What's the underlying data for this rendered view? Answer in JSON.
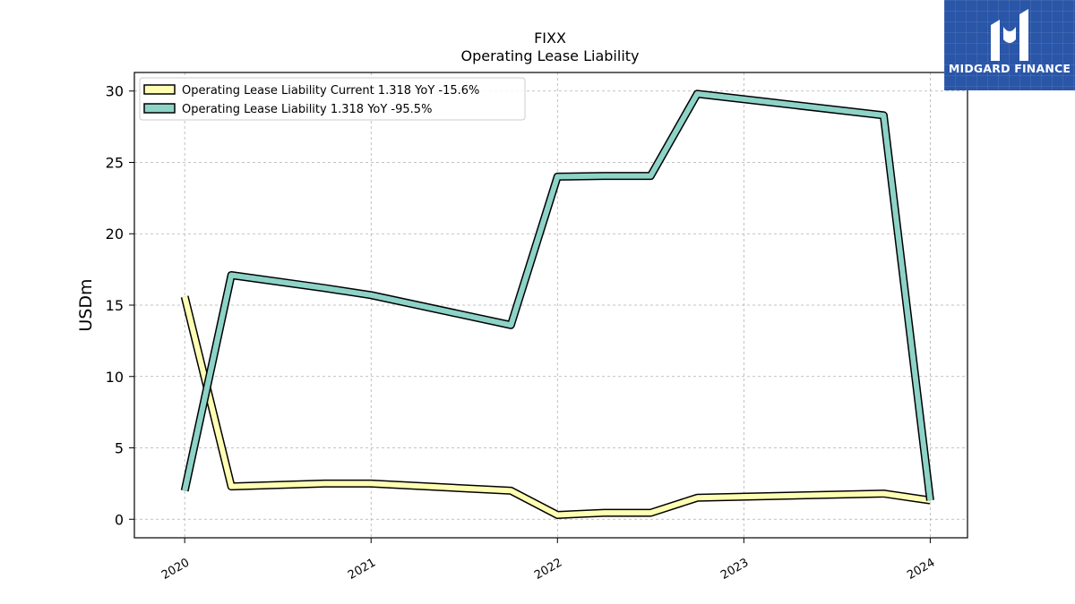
{
  "chart_data": {
    "type": "line",
    "title": "FIXX",
    "subtitle": "Operating Lease Liability",
    "ylabel": "USDm",
    "xlabel": "",
    "xlim": [
      2019.73,
      2024.2
    ],
    "ylim": [
      -1.3,
      31.3
    ],
    "yticks": [
      0,
      5,
      10,
      15,
      20,
      25,
      30
    ],
    "xticks": [
      "2020",
      "2021",
      "2022",
      "2023",
      "2024"
    ],
    "grid": true,
    "legend_position": "top-left",
    "series": [
      {
        "name": "Operating Lease Liability Current  1.318 YoY -15.6%",
        "color": "#ffffb3",
        "points": [
          {
            "x": "2020-01-01",
            "y": 15.6
          },
          {
            "x": "2020-04-01",
            "y": 2.3
          },
          {
            "x": "2020-10-01",
            "y": 2.5
          },
          {
            "x": "2021-01-01",
            "y": 2.5
          },
          {
            "x": "2021-10-01",
            "y": 2.0
          },
          {
            "x": "2022-01-01",
            "y": 0.3
          },
          {
            "x": "2022-04-01",
            "y": 0.45
          },
          {
            "x": "2022-07-01",
            "y": 0.45
          },
          {
            "x": "2022-10-01",
            "y": 1.5
          },
          {
            "x": "2023-10-01",
            "y": 1.8
          },
          {
            "x": "2024-01-01",
            "y": 1.318
          }
        ]
      },
      {
        "name": "Operating Lease Liability  1.318 YoY -95.5%",
        "color": "#8dd3c7",
        "points": [
          {
            "x": "2020-01-01",
            "y": 2.0
          },
          {
            "x": "2020-04-01",
            "y": 17.1
          },
          {
            "x": "2020-10-01",
            "y": 16.2
          },
          {
            "x": "2021-01-01",
            "y": 15.7
          },
          {
            "x": "2021-10-01",
            "y": 13.6
          },
          {
            "x": "2022-01-01",
            "y": 24.0
          },
          {
            "x": "2022-04-01",
            "y": 24.05
          },
          {
            "x": "2022-07-01",
            "y": 24.05
          },
          {
            "x": "2022-10-01",
            "y": 29.8
          },
          {
            "x": "2023-10-01",
            "y": 28.3
          },
          {
            "x": "2024-01-01",
            "y": 1.318
          }
        ]
      }
    ]
  },
  "logo": {
    "text": "MIDGARD FINANCE",
    "icon": "midgard-logo-icon"
  }
}
